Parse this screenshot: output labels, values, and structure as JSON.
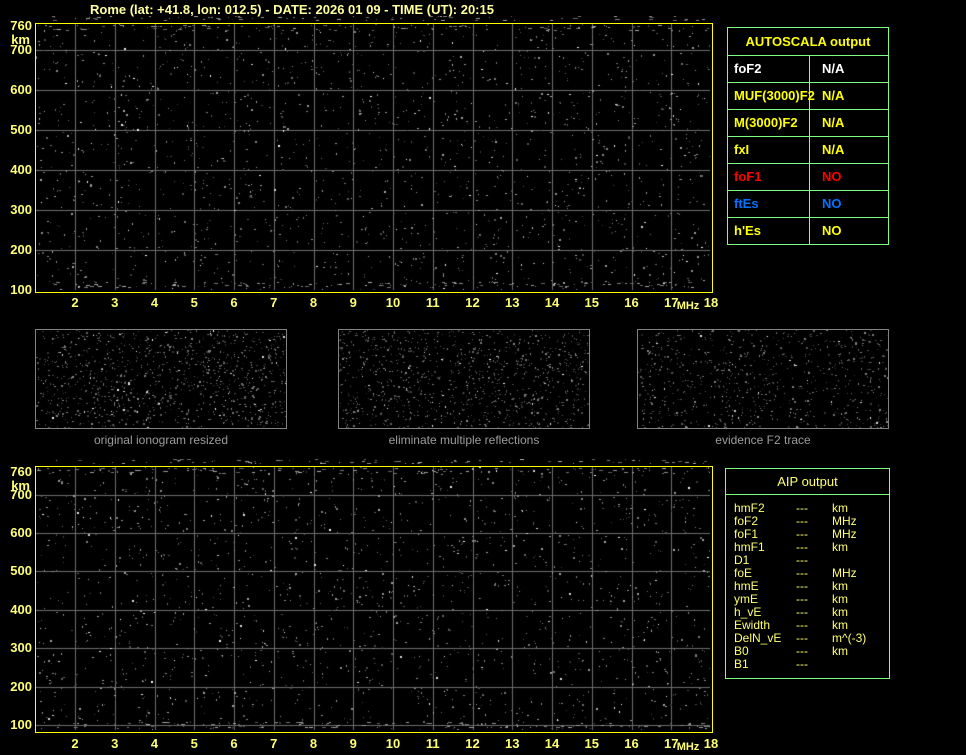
{
  "title": "Rome (lat: +41.8, lon: 012.5) - DATE: 2026 01 09 - TIME (UT): 20:15",
  "ionogram_top": {
    "y_unit": "km",
    "y_ticks": [
      760,
      700,
      600,
      500,
      400,
      300,
      200,
      100
    ],
    "x_ticks": [
      2,
      3,
      4,
      5,
      6,
      7,
      8,
      9,
      10,
      11,
      12,
      13,
      14,
      15,
      16,
      17,
      18
    ],
    "x_unit": "MHz"
  },
  "ionogram_bottom": {
    "y_unit": "km",
    "y_ticks": [
      760,
      700,
      600,
      500,
      400,
      300,
      200,
      100
    ],
    "x_ticks": [
      2,
      3,
      4,
      5,
      6,
      7,
      8,
      9,
      10,
      11,
      12,
      13,
      14,
      15,
      16,
      17,
      18
    ],
    "x_unit": "MHz"
  },
  "processing_panels": [
    {
      "label": "original ionogram resized"
    },
    {
      "label": "eliminate multiple reflections"
    },
    {
      "label": "evidence F2 trace"
    }
  ],
  "autoscala_table": {
    "title": "AUTOSCALA output",
    "rows": [
      {
        "param": "foF2",
        "value": "N/A",
        "color": "#FFFFFF"
      },
      {
        "param": "MUF(3000)F2",
        "value": "N/A",
        "color": "#FFFF00"
      },
      {
        "param": "M(3000)F2",
        "value": "N/A",
        "color": "#FFFF00"
      },
      {
        "param": "fxI",
        "value": "N/A",
        "color": "#FFFF00"
      },
      {
        "param": "foF1",
        "value": "NO",
        "color": "#FF0000"
      },
      {
        "param": "ftEs",
        "value": "NO",
        "color": "#0073FF"
      },
      {
        "param": "h'Es",
        "value": "NO",
        "color": "#FFFF00"
      }
    ]
  },
  "aip_table": {
    "title": "AIP output",
    "rows": [
      {
        "param": "hmF2",
        "value": "---",
        "unit": "km"
      },
      {
        "param": "foF2",
        "value": "---",
        "unit": "MHz"
      },
      {
        "param": "foF1",
        "value": "---",
        "unit": "MHz"
      },
      {
        "param": "hmF1",
        "value": "---",
        "unit": "km"
      },
      {
        "param": "D1",
        "value": "---",
        "unit": ""
      },
      {
        "param": "foE",
        "value": "---",
        "unit": "MHz"
      },
      {
        "param": "hmE",
        "value": "---",
        "unit": "km"
      },
      {
        "param": "ymE",
        "value": "---",
        "unit": "km"
      },
      {
        "param": "h_vE",
        "value": "---",
        "unit": "km"
      },
      {
        "param": "Ewidth",
        "value": "---",
        "unit": "km"
      },
      {
        "param": "DelN_vE",
        "value": "---",
        "unit": "m^(-3)"
      },
      {
        "param": "B0",
        "value": "---",
        "unit": "km"
      },
      {
        "param": "B1",
        "value": "---",
        "unit": ""
      }
    ]
  },
  "colors": {
    "plot_border": "#FFFF00",
    "grid": "#6E6E6E",
    "table_border": "#80FF80",
    "axis_text": "#FFFF75",
    "title_text": "#FFFF9E",
    "aip_text": "#FFFF70",
    "panel_text": "#9C9C9C"
  }
}
